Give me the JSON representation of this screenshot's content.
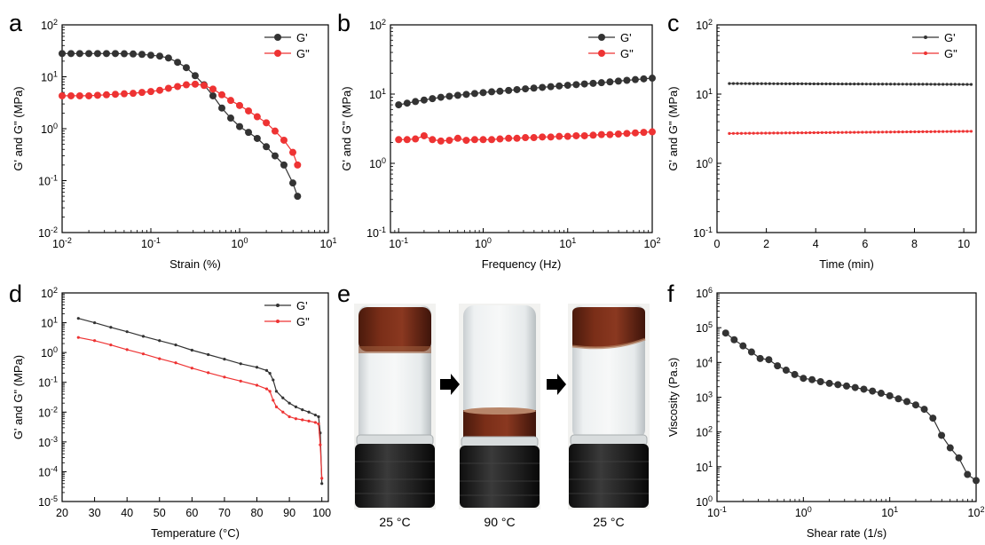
{
  "chart_data": [
    {
      "panel": "a",
      "type": "line",
      "xscale": "log",
      "yscale": "log",
      "xlim": [
        0.01,
        10
      ],
      "ylim": [
        0.01,
        100
      ],
      "xticks": [
        0.01,
        0.1,
        1,
        10
      ],
      "xtick_labels": [
        [
          "10",
          "-2"
        ],
        [
          "10",
          "-1"
        ],
        [
          "10",
          "0"
        ],
        [
          "10",
          "1"
        ]
      ],
      "yticks": [
        0.01,
        0.1,
        1,
        10,
        100
      ],
      "ytick_labels": [
        [
          "10",
          "-2"
        ],
        [
          "10",
          "-1"
        ],
        [
          "10",
          "0"
        ],
        [
          "10",
          "1"
        ],
        [
          "10",
          "2"
        ]
      ],
      "xlabel": "Strain (%)",
      "ylabel": "G' and G\" (MPa)",
      "legend": "top-right",
      "series": [
        {
          "name": "G'",
          "color": "#333333",
          "marker": "circle",
          "x": [
            0.01,
            0.0126,
            0.0158,
            0.02,
            0.0251,
            0.0316,
            0.0398,
            0.0501,
            0.0631,
            0.0794,
            0.1,
            0.126,
            0.158,
            0.2,
            0.251,
            0.316,
            0.398,
            0.501,
            0.631,
            0.794,
            1.0,
            1.26,
            1.58,
            2.0,
            2.51,
            3.16,
            3.98,
            4.5
          ],
          "y": [
            28,
            28,
            28,
            28,
            28,
            28,
            28,
            27.8,
            27.5,
            27,
            26,
            25,
            23,
            19,
            15,
            10.5,
            7,
            4.3,
            2.5,
            1.6,
            1.1,
            0.85,
            0.65,
            0.45,
            0.3,
            0.2,
            0.09,
            0.05
          ]
        },
        {
          "name": "G\"",
          "color": "#ee3333",
          "marker": "circle",
          "x": [
            0.01,
            0.0126,
            0.0158,
            0.02,
            0.0251,
            0.0316,
            0.0398,
            0.0501,
            0.0631,
            0.0794,
            0.1,
            0.126,
            0.158,
            0.2,
            0.251,
            0.316,
            0.398,
            0.501,
            0.631,
            0.794,
            1.0,
            1.26,
            1.58,
            2.0,
            2.51,
            3.16,
            3.98,
            4.5
          ],
          "y": [
            4.3,
            4.3,
            4.3,
            4.3,
            4.4,
            4.5,
            4.6,
            4.7,
            4.8,
            5.0,
            5.2,
            5.5,
            6.0,
            6.5,
            7.0,
            7.2,
            6.8,
            5.8,
            4.5,
            3.5,
            2.8,
            2.2,
            1.7,
            1.3,
            0.9,
            0.6,
            0.35,
            0.2
          ]
        }
      ]
    },
    {
      "panel": "b",
      "type": "line",
      "xscale": "log",
      "yscale": "log",
      "xlim": [
        0.08,
        100
      ],
      "ylim": [
        0.1,
        100
      ],
      "xticks": [
        0.1,
        1,
        10,
        100
      ],
      "xtick_labels": [
        [
          "10",
          "-1"
        ],
        [
          "10",
          "0"
        ],
        [
          "10",
          "1"
        ],
        [
          "10",
          "2"
        ]
      ],
      "yticks": [
        0.1,
        1,
        10,
        100
      ],
      "ytick_labels": [
        [
          "10",
          "-1"
        ],
        [
          "10",
          "0"
        ],
        [
          "10",
          "1"
        ],
        [
          "10",
          "2"
        ]
      ],
      "xlabel": "Frequency (Hz)",
      "ylabel": "G' and G\" (MPa)",
      "legend": "top-right",
      "series": [
        {
          "name": "G'",
          "color": "#333333",
          "marker": "circle",
          "x": [
            0.1,
            0.126,
            0.158,
            0.2,
            0.251,
            0.316,
            0.398,
            0.501,
            0.631,
            0.794,
            1.0,
            1.26,
            1.58,
            2.0,
            2.51,
            3.16,
            3.98,
            5.01,
            6.31,
            7.94,
            10,
            12.6,
            15.8,
            20,
            25.1,
            31.6,
            39.8,
            50.1,
            63.1,
            79.4,
            100
          ],
          "y": [
            7,
            7.4,
            7.8,
            8.2,
            8.6,
            9.0,
            9.3,
            9.6,
            9.9,
            10.2,
            10.5,
            10.8,
            11.0,
            11.3,
            11.6,
            11.9,
            12.2,
            12.5,
            12.8,
            13.1,
            13.4,
            13.7,
            14.0,
            14.3,
            14.6,
            15.0,
            15.4,
            15.8,
            16.2,
            16.6,
            17
          ]
        },
        {
          "name": "G\"",
          "color": "#ee3333",
          "marker": "circle",
          "x": [
            0.1,
            0.126,
            0.158,
            0.2,
            0.251,
            0.316,
            0.398,
            0.501,
            0.631,
            0.794,
            1.0,
            1.26,
            1.58,
            2.0,
            2.51,
            3.16,
            3.98,
            5.01,
            6.31,
            7.94,
            10,
            12.6,
            15.8,
            20,
            25.1,
            31.6,
            39.8,
            50.1,
            63.1,
            79.4,
            100
          ],
          "y": [
            2.2,
            2.2,
            2.25,
            2.5,
            2.2,
            2.1,
            2.15,
            2.3,
            2.15,
            2.2,
            2.2,
            2.2,
            2.25,
            2.3,
            2.3,
            2.35,
            2.35,
            2.4,
            2.4,
            2.45,
            2.45,
            2.5,
            2.5,
            2.55,
            2.6,
            2.6,
            2.65,
            2.7,
            2.75,
            2.8,
            2.85
          ]
        }
      ]
    },
    {
      "panel": "c",
      "type": "line",
      "xscale": "linear",
      "yscale": "log",
      "xlim": [
        0,
        10.5
      ],
      "ylim": [
        0.1,
        100
      ],
      "xticks": [
        0,
        2,
        4,
        6,
        8,
        10
      ],
      "xtick_labels": [
        [
          "0",
          ""
        ],
        [
          "2",
          ""
        ],
        [
          "4",
          ""
        ],
        [
          "6",
          ""
        ],
        [
          "8",
          ""
        ],
        [
          "10",
          ""
        ]
      ],
      "yticks": [
        0.1,
        1,
        10,
        100
      ],
      "ytick_labels": [
        [
          "10",
          "-1"
        ],
        [
          "10",
          "0"
        ],
        [
          "10",
          "1"
        ],
        [
          "10",
          "2"
        ]
      ],
      "xlabel": "Time (min)",
      "ylabel": "G' and G\" (MPa)",
      "legend": "top-right",
      "series": [
        {
          "name": "G'",
          "color": "#333333",
          "marker": "small",
          "x": [
            0.5,
            10.3
          ],
          "y": [
            14.2,
            13.8
          ]
        },
        {
          "name": "G\"",
          "color": "#ee3333",
          "marker": "small",
          "x": [
            0.5,
            10.3
          ],
          "y": [
            2.7,
            2.9
          ]
        }
      ]
    },
    {
      "panel": "d",
      "type": "line",
      "xscale": "linear",
      "yscale": "log",
      "xlim": [
        20,
        102
      ],
      "ylim": [
        1e-05,
        100
      ],
      "xticks": [
        20,
        30,
        40,
        50,
        60,
        70,
        80,
        90,
        100
      ],
      "xtick_labels": [
        [
          "20",
          ""
        ],
        [
          "30",
          ""
        ],
        [
          "40",
          ""
        ],
        [
          "50",
          ""
        ],
        [
          "60",
          ""
        ],
        [
          "70",
          ""
        ],
        [
          "80",
          ""
        ],
        [
          "90",
          ""
        ],
        [
          "100",
          ""
        ]
      ],
      "yticks": [
        1e-05,
        0.0001,
        0.001,
        0.01,
        0.1,
        1,
        10,
        100
      ],
      "ytick_labels": [
        [
          "10",
          "-5"
        ],
        [
          "10",
          "-4"
        ],
        [
          "10",
          "-3"
        ],
        [
          "10",
          "-2"
        ],
        [
          "10",
          "-1"
        ],
        [
          "10",
          "0"
        ],
        [
          "10",
          "1"
        ],
        [
          "10",
          "2"
        ]
      ],
      "xlabel": "Temperature (°C)",
      "ylabel": "G' and G\" (MPa)",
      "legend": "top-right",
      "series": [
        {
          "name": "G'",
          "color": "#333333",
          "marker": "small",
          "x": [
            25,
            30,
            35,
            40,
            45,
            50,
            55,
            60,
            65,
            70,
            75,
            80,
            83,
            84,
            85,
            86,
            88,
            90,
            92,
            94,
            96,
            98,
            99,
            99.5,
            100
          ],
          "y": [
            14,
            10,
            7,
            5,
            3.5,
            2.5,
            1.8,
            1.2,
            0.85,
            0.6,
            0.42,
            0.32,
            0.25,
            0.2,
            0.12,
            0.05,
            0.03,
            0.02,
            0.015,
            0.012,
            0.01,
            0.008,
            0.007,
            0.002,
            4e-05
          ]
        },
        {
          "name": "G\"",
          "color": "#ee3333",
          "marker": "small",
          "x": [
            25,
            30,
            35,
            40,
            45,
            50,
            55,
            60,
            65,
            70,
            75,
            80,
            83,
            84,
            85,
            86,
            88,
            90,
            92,
            94,
            96,
            98,
            99,
            99.5,
            100
          ],
          "y": [
            3.2,
            2.5,
            1.8,
            1.25,
            0.9,
            0.62,
            0.45,
            0.3,
            0.21,
            0.15,
            0.11,
            0.08,
            0.06,
            0.05,
            0.025,
            0.015,
            0.01,
            0.007,
            0.006,
            0.0055,
            0.005,
            0.0045,
            0.004,
            0.0008,
            6e-05
          ]
        }
      ]
    },
    {
      "panel": "f",
      "type": "line",
      "xscale": "log",
      "yscale": "log",
      "xlim": [
        0.1,
        100
      ],
      "ylim": [
        1,
        1000000
      ],
      "xticks": [
        0.1,
        1,
        10,
        100
      ],
      "xtick_labels": [
        [
          "10",
          "-1"
        ],
        [
          "10",
          "0"
        ],
        [
          "10",
          "1"
        ],
        [
          "10",
          "2"
        ]
      ],
      "yticks": [
        1,
        10,
        100,
        1000,
        10000,
        100000,
        1000000
      ],
      "ytick_labels": [
        [
          "10",
          "0"
        ],
        [
          "10",
          "1"
        ],
        [
          "10",
          "2"
        ],
        [
          "10",
          "3"
        ],
        [
          "10",
          "4"
        ],
        [
          "10",
          "5"
        ],
        [
          "10",
          "6"
        ]
      ],
      "xlabel": "Shear rate (1/s)",
      "ylabel": "Viscosity (Pa.s)",
      "legend": "none",
      "series": [
        {
          "name": "",
          "color": "#333333",
          "marker": "circle",
          "x": [
            0.126,
            0.158,
            0.2,
            0.251,
            0.316,
            0.398,
            0.501,
            0.631,
            0.794,
            1.0,
            1.26,
            1.58,
            2.0,
            2.51,
            3.16,
            3.98,
            5.01,
            6.31,
            7.94,
            10,
            12.6,
            15.8,
            20,
            25.1,
            31.6,
            39.8,
            50.1,
            63.1,
            79.4,
            100
          ],
          "y": [
            70000,
            45000,
            30000,
            20000,
            13000,
            12000,
            8000,
            6000,
            4500,
            3500,
            3200,
            2800,
            2500,
            2300,
            2100,
            1900,
            1700,
            1500,
            1300,
            1100,
            900,
            750,
            600,
            450,
            250,
            80,
            35,
            18,
            6,
            4
          ]
        }
      ]
    }
  ],
  "panel_letters": {
    "a": "a",
    "b": "b",
    "c": "c",
    "d": "d",
    "e": "e",
    "f": "f"
  },
  "photo_panel": {
    "captions": [
      "25 °C",
      "90 °C",
      "25 °C"
    ]
  }
}
